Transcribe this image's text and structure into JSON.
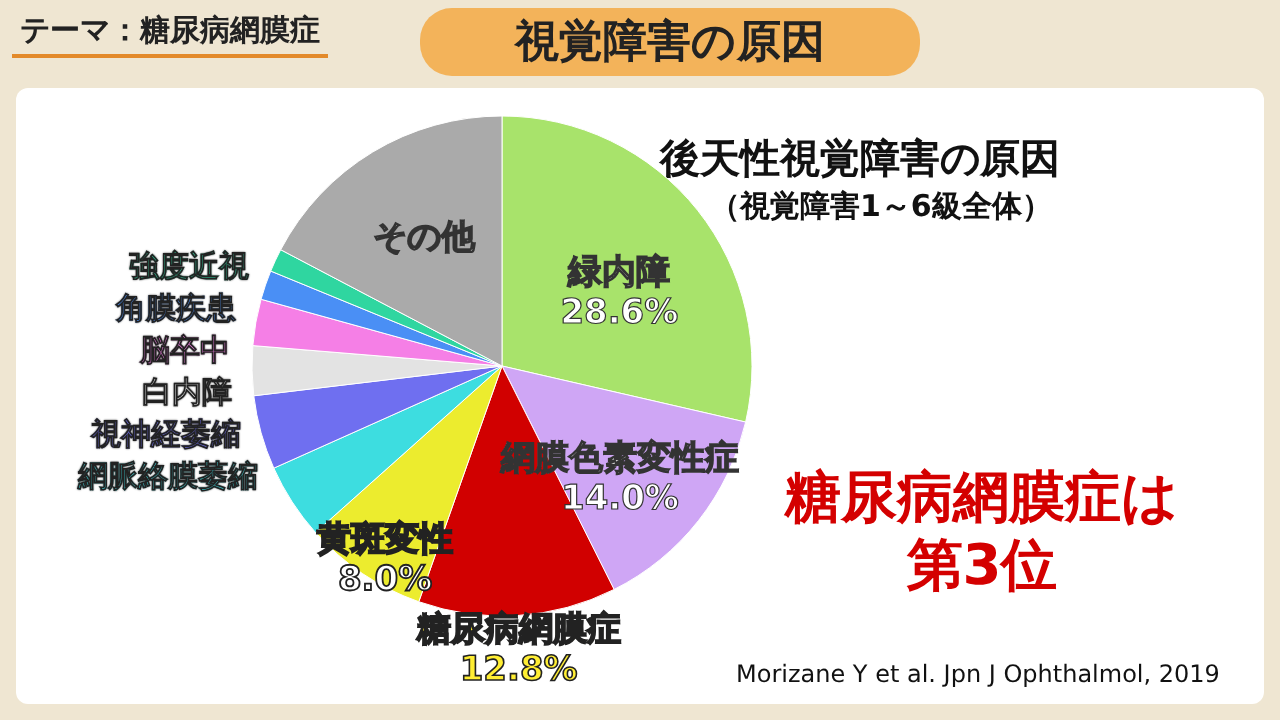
{
  "chart_data": {
    "type": "pie",
    "title": "視覚障害の原因",
    "subtitle": "後天性視覚障害の原因",
    "categories": [
      "緑内障",
      "網膜色素変性症",
      "糖尿病網膜症",
      "黄斑変性",
      "網脈絡膜萎縮",
      "視神経萎縮",
      "白内障",
      "脳卒中",
      "角膜疾患",
      "強度近視",
      "その他"
    ],
    "values": [
      28.6,
      14.0,
      12.8,
      8.0,
      4.9,
      4.8,
      3.2,
      3.0,
      1.9,
      1.5,
      17.3
    ],
    "colors": [
      "#a8e36b",
      "#cfa6f5",
      "#d10000",
      "#ecec2e",
      "#3ddde0",
      "#6f6ff0",
      "#e3e3e3",
      "#f57fe6",
      "#4a8ff5",
      "#2fd6a0",
      "#aaaaaa"
    ],
    "value_labels": [
      "28.6%",
      "14.0%",
      "12.8%",
      "8.0%",
      null,
      null,
      null,
      null,
      null,
      null,
      null
    ],
    "annotations": [
      "テーマ：糖尿病網膜症",
      "（視覚障害1～6級全体）",
      "糖尿病網膜症は第3位",
      "Morizane Y et al. Jpn J Ophthalmol, 2019"
    ]
  }
}
